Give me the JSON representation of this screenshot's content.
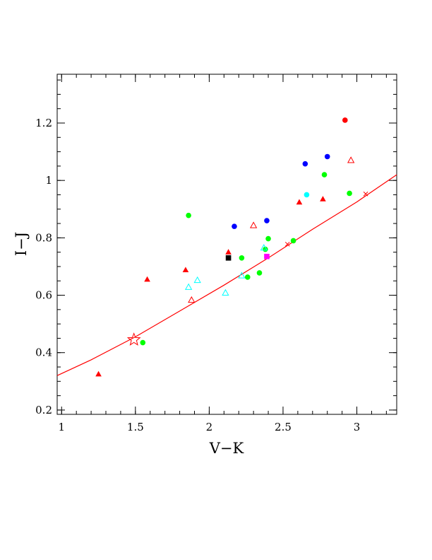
{
  "chart_data": {
    "type": "scatter",
    "xlabel": "V−K",
    "ylabel": "I−J",
    "xlim": [
      0.97,
      3.27
    ],
    "ylim": [
      0.185,
      1.37
    ],
    "x_ticks": [
      1,
      1.5,
      2,
      2.5,
      3
    ],
    "x_tick_labels": [
      "1",
      "1.5",
      "2",
      "2.5",
      "3"
    ],
    "y_ticks": [
      0.2,
      0.4,
      0.6,
      0.8,
      1.0,
      1.2
    ],
    "y_tick_labels": [
      "0.2",
      "0.4",
      "0.6",
      "0.8",
      "1",
      "1.2"
    ],
    "x_minor_step": 0.1,
    "y_minor_step": 0.05,
    "grid": false,
    "legend": "none",
    "colors": {
      "red": "#ff0000",
      "green": "#00ff00",
      "blue": "#0000ff",
      "cyan": "#00ffff",
      "magenta": "#ff00ff",
      "black": "#000000",
      "curve": "#ff0000"
    },
    "curve": {
      "color": "red",
      "x": [
        0.97,
        1.2,
        1.5,
        1.8,
        2.1,
        2.4,
        2.7,
        3.0,
        3.27
      ],
      "y": [
        0.32,
        0.375,
        0.455,
        0.545,
        0.635,
        0.73,
        0.83,
        0.925,
        1.02
      ]
    },
    "points": [
      {
        "x": 1.25,
        "y": 0.325,
        "marker": "triangle-filled",
        "color": "red"
      },
      {
        "x": 1.58,
        "y": 0.655,
        "marker": "triangle-filled",
        "color": "red"
      },
      {
        "x": 1.84,
        "y": 0.688,
        "marker": "triangle-filled",
        "color": "red"
      },
      {
        "x": 2.13,
        "y": 0.75,
        "marker": "triangle-filled",
        "color": "red"
      },
      {
        "x": 2.61,
        "y": 0.924,
        "marker": "triangle-filled",
        "color": "red"
      },
      {
        "x": 2.77,
        "y": 0.935,
        "marker": "triangle-filled",
        "color": "red"
      },
      {
        "x": 1.88,
        "y": 0.583,
        "marker": "triangle-open",
        "color": "red"
      },
      {
        "x": 2.3,
        "y": 0.843,
        "marker": "triangle-open",
        "color": "red"
      },
      {
        "x": 2.96,
        "y": 1.07,
        "marker": "triangle-open",
        "color": "red"
      },
      {
        "x": 2.92,
        "y": 1.21,
        "marker": "circle-filled",
        "color": "red"
      },
      {
        "x": 1.49,
        "y": 0.445,
        "marker": "star-open",
        "color": "red"
      },
      {
        "x": 2.53,
        "y": 0.778,
        "marker": "cross",
        "color": "red"
      },
      {
        "x": 3.06,
        "y": 0.953,
        "marker": "cross",
        "color": "red"
      },
      {
        "x": 1.55,
        "y": 0.435,
        "marker": "circle-filled",
        "color": "green"
      },
      {
        "x": 1.86,
        "y": 0.878,
        "marker": "circle-filled",
        "color": "green"
      },
      {
        "x": 2.22,
        "y": 0.73,
        "marker": "circle-filled",
        "color": "green"
      },
      {
        "x": 2.26,
        "y": 0.663,
        "marker": "circle-filled",
        "color": "green"
      },
      {
        "x": 2.34,
        "y": 0.678,
        "marker": "circle-filled",
        "color": "green"
      },
      {
        "x": 2.38,
        "y": 0.76,
        "marker": "circle-filled",
        "color": "green"
      },
      {
        "x": 2.4,
        "y": 0.797,
        "marker": "circle-filled",
        "color": "green"
      },
      {
        "x": 2.57,
        "y": 0.79,
        "marker": "circle-filled",
        "color": "green"
      },
      {
        "x": 2.78,
        "y": 1.02,
        "marker": "circle-filled",
        "color": "green"
      },
      {
        "x": 2.95,
        "y": 0.955,
        "marker": "circle-filled",
        "color": "green"
      },
      {
        "x": 2.17,
        "y": 0.84,
        "marker": "circle-filled",
        "color": "blue"
      },
      {
        "x": 2.39,
        "y": 0.86,
        "marker": "circle-filled",
        "color": "blue"
      },
      {
        "x": 2.65,
        "y": 1.058,
        "marker": "circle-filled",
        "color": "blue"
      },
      {
        "x": 2.8,
        "y": 1.083,
        "marker": "circle-filled",
        "color": "blue"
      },
      {
        "x": 2.66,
        "y": 0.95,
        "marker": "circle-filled",
        "color": "cyan"
      },
      {
        "x": 1.86,
        "y": 0.628,
        "marker": "triangle-open",
        "color": "cyan"
      },
      {
        "x": 1.92,
        "y": 0.652,
        "marker": "triangle-open",
        "color": "cyan"
      },
      {
        "x": 2.11,
        "y": 0.608,
        "marker": "triangle-open",
        "color": "cyan"
      },
      {
        "x": 2.22,
        "y": 0.668,
        "marker": "triangle-open",
        "color": "cyan"
      },
      {
        "x": 2.37,
        "y": 0.765,
        "marker": "triangle-open",
        "color": "cyan"
      },
      {
        "x": 2.39,
        "y": 0.735,
        "marker": "square-filled",
        "color": "magenta"
      },
      {
        "x": 2.13,
        "y": 0.73,
        "marker": "square-filled",
        "color": "black"
      }
    ]
  }
}
